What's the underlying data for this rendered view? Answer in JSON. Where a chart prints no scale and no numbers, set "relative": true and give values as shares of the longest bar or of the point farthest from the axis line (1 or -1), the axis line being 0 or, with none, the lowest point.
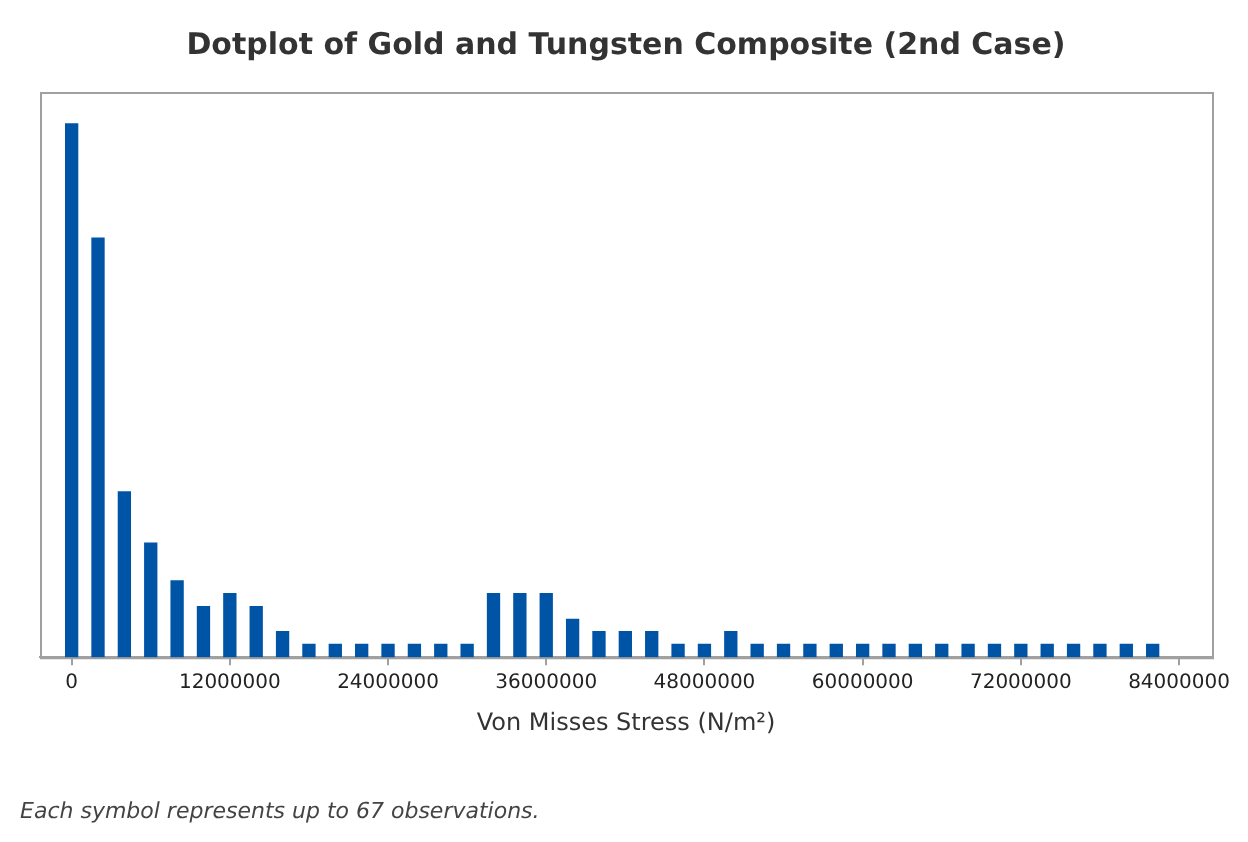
{
  "chart_data": {
    "type": "bar",
    "title": "Dotplot of Gold and Tungsten Composite (2nd Case)",
    "xlabel": "Von Misses Stress (N/m²)",
    "annotations": [
      "Each symbol represents up to 67 observations."
    ],
    "x": [
      0,
      2000000,
      4000000,
      6000000,
      8000000,
      10000000,
      12000000,
      14000000,
      16000000,
      18000000,
      20000000,
      22000000,
      24000000,
      26000000,
      28000000,
      30000000,
      32000000,
      34000000,
      36000000,
      38000000,
      40000000,
      42000000,
      44000000,
      46000000,
      48000000,
      50000000,
      52000000,
      54000000,
      56000000,
      58000000,
      60000000,
      62000000,
      64000000,
      66000000,
      68000000,
      70000000,
      72000000,
      74000000,
      76000000,
      78000000,
      80000000,
      82000000
    ],
    "values": [
      1,
      0.786,
      0.31,
      0.214,
      0.143,
      0.095,
      0.119,
      0.095,
      0.048,
      0.024,
      0.024,
      0.024,
      0.024,
      0.024,
      0.024,
      0.024,
      0.119,
      0.119,
      0.119,
      0.071,
      0.048,
      0.048,
      0.048,
      0.024,
      0.024,
      0.048,
      0.024,
      0.024,
      0.024,
      0.024,
      0.024,
      0.024,
      0.024,
      0.024,
      0.024,
      0.024,
      0.024,
      0.024,
      0.024,
      0.024,
      0.024,
      0.024
    ],
    "color": "#0054a6",
    "relative": true,
    "grid": false,
    "legend": false,
    "xlim": [
      -2400000,
      86500000
    ],
    "xticks": [
      0,
      12000000,
      24000000,
      36000000,
      48000000,
      60000000,
      72000000,
      84000000
    ]
  }
}
